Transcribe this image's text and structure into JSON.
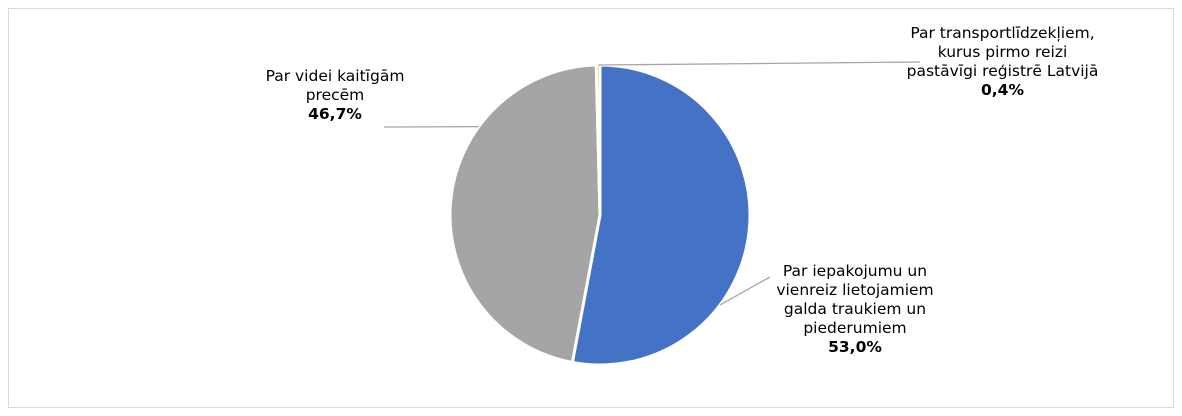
{
  "chart_data": {
    "type": "pie",
    "title": "",
    "slices": [
      {
        "label": "Par iepakojumu un vienreiz lietojamiem galda traukiem un piederumiem",
        "value": 53.0,
        "display": "53,0%",
        "color": "#4472c4"
      },
      {
        "label": "Par videi kaitīgām precēm",
        "value": 46.7,
        "display": "46,7%",
        "color": "#a5a5a5"
      },
      {
        "label": "Par transportlīdzekļiem, kurus pirmo reizi pastāvīgi reģistrē Latvijā",
        "value": 0.4,
        "display": "0,4%",
        "color": "#ffc000"
      }
    ]
  }
}
